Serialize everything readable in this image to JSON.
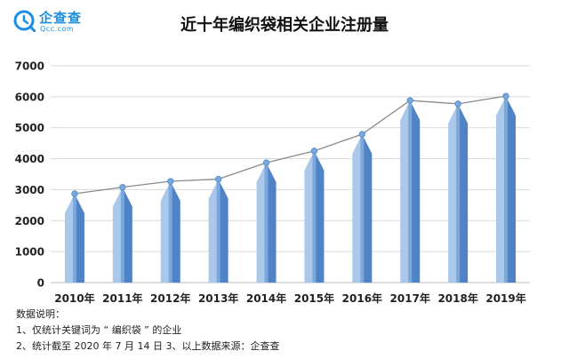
{
  "brand": {
    "name_cn": "企查查",
    "name_en": "Qcc.com",
    "logo_icon": "qcc-logo-icon",
    "color": "#1a8fe3"
  },
  "chart_data": {
    "type": "bar",
    "title": "近十年编织袋相关企业注册量",
    "categories": [
      "2010年",
      "2011年",
      "2012年",
      "2013年",
      "2014年",
      "2015年",
      "2016年",
      "2017年",
      "2018年",
      "2019年"
    ],
    "values": [
      2870,
      3080,
      3270,
      3340,
      3870,
      4250,
      4790,
      5880,
      5770,
      6020
    ],
    "overlay": "line",
    "ylim": [
      0,
      7000
    ],
    "yticks": [
      "0",
      "1000",
      "2000",
      "3000",
      "4000",
      "5000",
      "6000",
      "7000"
    ],
    "xlabel": "",
    "ylabel": "",
    "grid": true,
    "colors": {
      "bar_light": "#a9c8ea",
      "bar_mid": "#7aa8dc",
      "bar_dark": "#4f83c6",
      "line": "#8a8a8a",
      "marker": "#7aa8dc"
    }
  },
  "notes": {
    "header": "数据说明：",
    "line1": "1、仅统计关键词为 “ 编织袋 ” 的企业",
    "line2": "2、统计截至 2020 年 7 月 14 日    3、以上数据来源：企查查"
  }
}
